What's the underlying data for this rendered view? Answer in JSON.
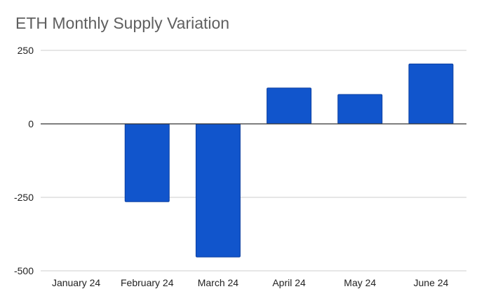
{
  "chart_data": {
    "type": "bar",
    "title": "ETH Monthly Supply Variation",
    "xlabel": "",
    "ylabel": "",
    "categories": [
      "January 24",
      "February 24",
      "March 24",
      "April 24",
      "May 24",
      "June 24"
    ],
    "values": [
      0,
      -265,
      -453,
      122,
      100,
      204
    ],
    "ylim": [
      -500,
      250
    ],
    "yticks": [
      250,
      0,
      -250,
      -500
    ],
    "grid": true,
    "legend": "none",
    "colors": {
      "bar": "#1155cc",
      "bar_edge": "#0b3fa0",
      "grid": "#cccccc",
      "zero_line": "#333333"
    }
  }
}
